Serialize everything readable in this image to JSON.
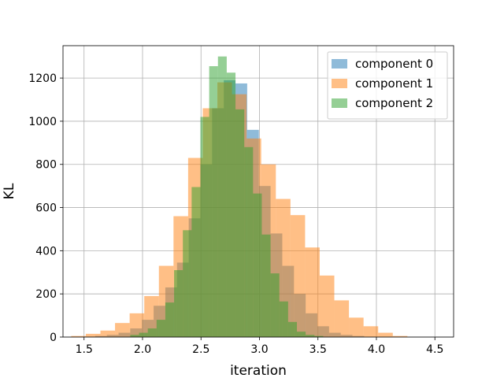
{
  "chart_data": {
    "type": "histogram",
    "title": "",
    "xlabel": "iteration",
    "ylabel": "KL",
    "xlim": [
      1.32,
      4.66
    ],
    "ylim": [
      0,
      1350
    ],
    "xticks": [
      1.5,
      2.0,
      2.5,
      3.0,
      3.5,
      4.0,
      4.5
    ],
    "yticks": [
      0,
      200,
      400,
      600,
      800,
      1000,
      1200
    ],
    "grid": true,
    "legend_position": "top-right",
    "opacity": 0.5,
    "series": [
      {
        "name": "component 0",
        "color": "#1f77b4",
        "bin_start": 1.495,
        "bin_width": 0.1,
        "counts": [
          2,
          5,
          10,
          20,
          40,
          80,
          145,
          230,
          345,
          550,
          800,
          1060,
          1190,
          1175,
          960,
          700,
          480,
          330,
          200,
          110,
          50,
          20,
          10,
          5
        ]
      },
      {
        "name": "component 1",
        "color": "#ff7f0e",
        "bin_start": 1.39,
        "bin_width": 0.125,
        "counts": [
          5,
          15,
          30,
          65,
          110,
          190,
          330,
          560,
          830,
          1060,
          1180,
          1125,
          920,
          800,
          640,
          565,
          415,
          285,
          170,
          90,
          50,
          20,
          5
        ]
      },
      {
        "name": "component 2",
        "color": "#2ca02c",
        "bin_start": 1.895,
        "bin_width": 0.075,
        "counts": [
          10,
          20,
          40,
          80,
          160,
          310,
          495,
          695,
          1020,
          1255,
          1300,
          1225,
          1055,
          880,
          665,
          475,
          295,
          165,
          70,
          25,
          10,
          5
        ]
      }
    ]
  }
}
